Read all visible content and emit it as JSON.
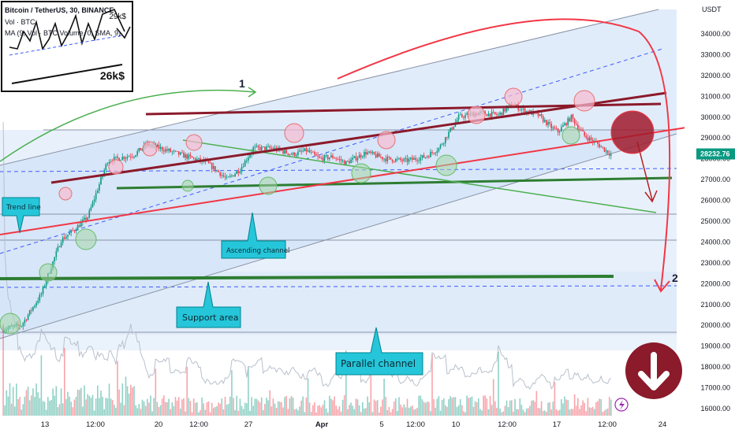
{
  "header": {
    "symbol_line": "Bitcoin / TetherUS, 30, BINANCE",
    "vol_line": "Vol · BTC",
    "ma_line": "MA (9, Vol · BTC Volume, 0, SMA, 9)"
  },
  "inset": {
    "target_top": "29k$",
    "target_bottom": "26k$"
  },
  "annotations": {
    "trend_line": "Trend line",
    "ascending_channel": "Ascending channel",
    "support_area": "Support area",
    "parallel_channel": "Parallel channel",
    "wave_1": "1",
    "wave_2": "2"
  },
  "colors": {
    "up_candle": "#089981",
    "down_candle": "#f23645",
    "red_line": "#f23645",
    "dark_red_line": "#8b1a2b",
    "green_line": "#2e7d32",
    "callout_fill": "#26c6da",
    "channel_fill": "#d6e6f8",
    "price_tag": "#089981"
  },
  "chart_data": {
    "type": "candlestick",
    "currency": "USDT",
    "last_price": "28232.76",
    "ylim": [
      15900,
      35100
    ],
    "yticks": [
      {
        "value": 16000,
        "label": "16000.00"
      },
      {
        "value": 17000,
        "label": "17000.00"
      },
      {
        "value": 18000,
        "label": "18000.00"
      },
      {
        "value": 19000,
        "label": "19000.00"
      },
      {
        "value": 20000,
        "label": "20000.00"
      },
      {
        "value": 21000,
        "label": "21000.00"
      },
      {
        "value": 22000,
        "label": "22000.00"
      },
      {
        "value": 23000,
        "label": "23000.00"
      },
      {
        "value": 24000,
        "label": "24000.00"
      },
      {
        "value": 25000,
        "label": "25000.00"
      },
      {
        "value": 26000,
        "label": "26000.00"
      },
      {
        "value": 27000,
        "label": "27000.00"
      },
      {
        "value": 28000,
        "label": "28000.00"
      },
      {
        "value": 29000,
        "label": "29000.00"
      },
      {
        "value": 30000,
        "label": "30000.00"
      },
      {
        "value": 31000,
        "label": "31000.00"
      },
      {
        "value": 32000,
        "label": "32000.00"
      },
      {
        "value": 33000,
        "label": "33000.00"
      },
      {
        "value": 34000,
        "label": "34000.00"
      }
    ],
    "xticks": [
      "13",
      "12:00",
      "20",
      "12:00",
      "27",
      "Apr",
      "5",
      "12:00",
      "10",
      "12:00",
      "17",
      "12:00",
      "24"
    ],
    "price_path_key_points": [
      [
        0,
        19800
      ],
      [
        3,
        20000
      ],
      [
        6,
        21500
      ],
      [
        7,
        22400
      ],
      [
        9,
        24100
      ],
      [
        11,
        24600
      ],
      [
        13,
        25200
      ],
      [
        16,
        27900
      ],
      [
        20,
        28200
      ],
      [
        22,
        28700
      ],
      [
        26,
        28300
      ],
      [
        29,
        28000
      ],
      [
        31,
        27800
      ],
      [
        33,
        27300
      ],
      [
        34,
        27000
      ],
      [
        36,
        27500
      ],
      [
        38,
        28500
      ],
      [
        41,
        28500
      ],
      [
        44,
        28200
      ],
      [
        46,
        28400
      ],
      [
        48,
        28000
      ],
      [
        50,
        28100
      ],
      [
        52,
        27800
      ],
      [
        55,
        28300
      ],
      [
        58,
        28000
      ],
      [
        61,
        27900
      ],
      [
        64,
        28100
      ],
      [
        66,
        28500
      ],
      [
        69,
        30000
      ],
      [
        72,
        30200
      ],
      [
        75,
        30100
      ],
      [
        77,
        30600
      ],
      [
        79,
        30300
      ],
      [
        81,
        30100
      ],
      [
        83,
        29500
      ],
      [
        84,
        29300
      ],
      [
        86,
        30000
      ],
      [
        88,
        29100
      ],
      [
        90,
        28700
      ],
      [
        92,
        28200
      ]
    ]
  }
}
